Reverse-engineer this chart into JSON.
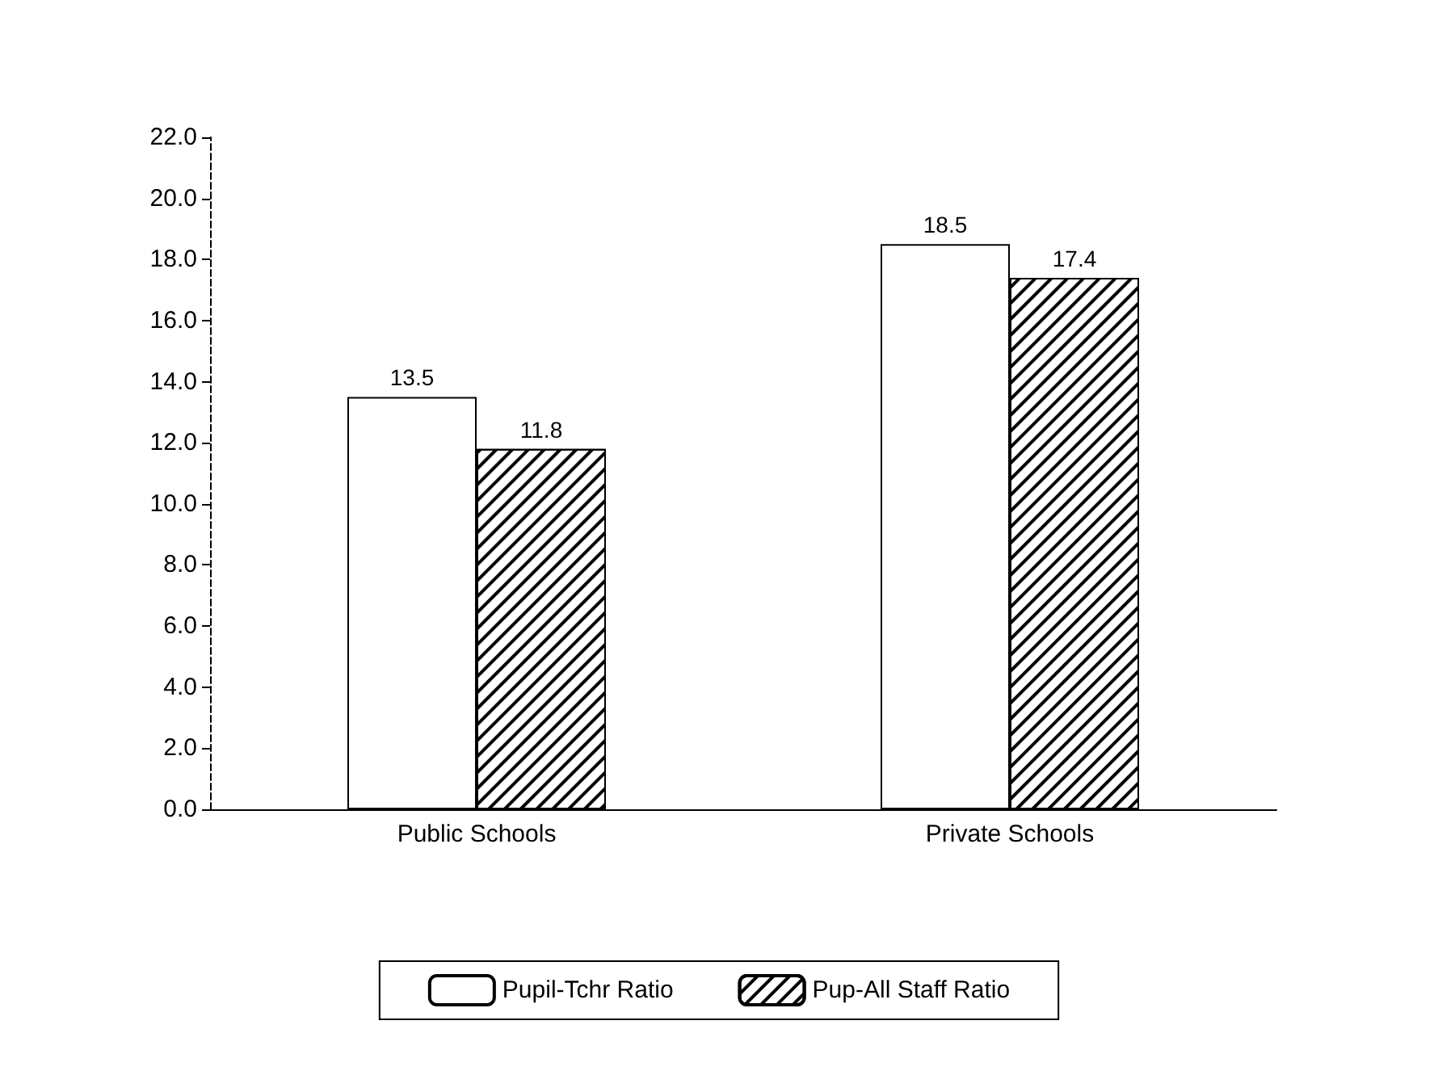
{
  "chart_data": {
    "type": "bar",
    "categories": [
      "Public Schools",
      "Private Schools"
    ],
    "series": [
      {
        "name": "Pupil-Tchr Ratio",
        "color": "#ffffff",
        "values": [
          13.5,
          18.5
        ]
      },
      {
        "name": "Pup-All Staff Ratio",
        "color": "#000000",
        "values": [
          11.8,
          17.4
        ]
      }
    ],
    "ylim": [
      0,
      22
    ],
    "yticks": [
      {
        "value": 0,
        "label": "0.0"
      },
      {
        "value": 2,
        "label": "2.0"
      },
      {
        "value": 4,
        "label": "4.0"
      },
      {
        "value": 6,
        "label": "6.0"
      },
      {
        "value": 8,
        "label": "8.0"
      },
      {
        "value": 10,
        "label": "10.0"
      },
      {
        "value": 12,
        "label": "12.0"
      },
      {
        "value": 14,
        "label": "14.0"
      },
      {
        "value": 16,
        "label": "16.0"
      },
      {
        "value": 18,
        "label": "18.0"
      },
      {
        "value": 20,
        "label": "20.0"
      },
      {
        "value": 22,
        "label": "22.0"
      }
    ],
    "data_labels": true,
    "grid": false,
    "legend": "bottom"
  }
}
